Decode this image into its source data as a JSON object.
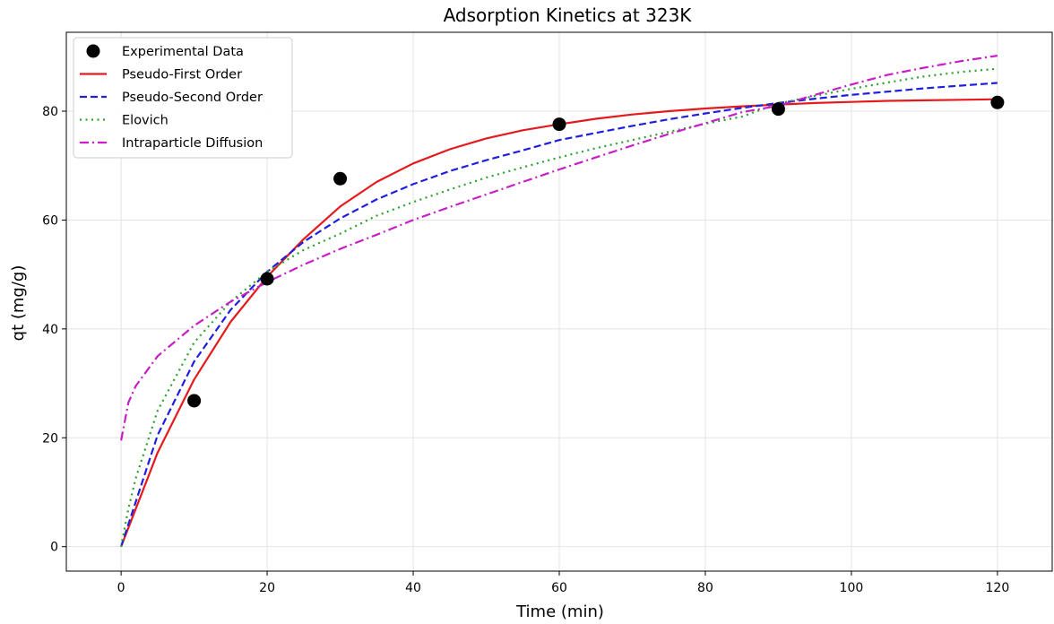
{
  "chart_data": {
    "type": "line",
    "title": "Adsorption Kinetics at 323K",
    "xlabel": "Time (min)",
    "ylabel": "qt (mg/g)",
    "xlim": [
      -7.5,
      127.5
    ],
    "ylim": [
      -4.5,
      94.5
    ],
    "xticks": [
      0,
      20,
      40,
      60,
      80,
      100,
      120
    ],
    "yticks": [
      0,
      20,
      40,
      60,
      80
    ],
    "grid": true,
    "legend_position": "top-left",
    "experimental": {
      "name": "Experimental Data",
      "color": "#000000",
      "x": [
        10,
        20,
        30,
        60,
        90,
        120
      ],
      "y": [
        26.8,
        49.2,
        67.6,
        77.6,
        80.4,
        81.6
      ]
    },
    "series": [
      {
        "name": "Pseudo-First Order",
        "color": "#e41a1c",
        "style": "solid",
        "x": [
          0,
          5,
          10,
          15,
          20,
          25,
          30,
          35,
          40,
          45,
          50,
          55,
          60,
          65,
          70,
          75,
          80,
          85,
          90,
          95,
          100,
          105,
          110,
          115,
          120
        ],
        "y": [
          0,
          17.3,
          30.7,
          41.3,
          49.6,
          56.5,
          62.5,
          67.0,
          70.4,
          73.0,
          75.0,
          76.5,
          77.6,
          78.6,
          79.4,
          80.0,
          80.5,
          80.9,
          81.2,
          81.5,
          81.7,
          81.9,
          82.0,
          82.1,
          82.2
        ]
      },
      {
        "name": "Pseudo-Second Order",
        "color": "#1f1fdd",
        "style": "dashed",
        "x": [
          0,
          5,
          10,
          15,
          20,
          25,
          30,
          35,
          40,
          45,
          50,
          55,
          60,
          65,
          70,
          75,
          80,
          85,
          90,
          95,
          100,
          105,
          110,
          115,
          120
        ],
        "y": [
          0,
          20.5,
          34.0,
          43.5,
          50.5,
          56.0,
          60.3,
          63.8,
          66.6,
          69.0,
          71.0,
          72.8,
          74.7,
          76.0,
          77.3,
          78.5,
          79.6,
          80.6,
          81.5,
          82.3,
          83.0,
          83.6,
          84.2,
          84.7,
          85.2
        ]
      },
      {
        "name": "Elovich",
        "color": "#2ca02c",
        "style": "dotted",
        "x": [
          0,
          1,
          2,
          5,
          10,
          15,
          20,
          25,
          30,
          35,
          40,
          45,
          50,
          55,
          60,
          65,
          70,
          75,
          80,
          85,
          90,
          95,
          100,
          105,
          110,
          115,
          120
        ],
        "y": [
          0,
          7.0,
          12.5,
          25.0,
          37.5,
          45.0,
          50.5,
          54.5,
          57.5,
          60.8,
          63.3,
          65.6,
          67.8,
          69.7,
          71.5,
          73.2,
          74.7,
          76.2,
          77.7,
          79.0,
          81.4,
          82.8,
          84.1,
          85.3,
          86.4,
          87.2,
          87.8
        ]
      },
      {
        "name": "Intraparticle Diffusion",
        "color": "#c71ec7",
        "style": "dashdot",
        "x": [
          0,
          1,
          2,
          5,
          10,
          15,
          20,
          25,
          30,
          35,
          40,
          45,
          50,
          55,
          60,
          65,
          70,
          75,
          80,
          85,
          90,
          95,
          100,
          105,
          110,
          115,
          120
        ],
        "y": [
          19.5,
          26.5,
          29.5,
          35.0,
          40.6,
          45.0,
          48.6,
          51.8,
          54.7,
          57.3,
          60.0,
          62.4,
          64.7,
          67.0,
          69.3,
          71.5,
          73.7,
          75.8,
          77.8,
          79.8,
          81.0,
          83.0,
          84.9,
          86.7,
          88.0,
          89.2,
          90.2
        ]
      }
    ]
  }
}
